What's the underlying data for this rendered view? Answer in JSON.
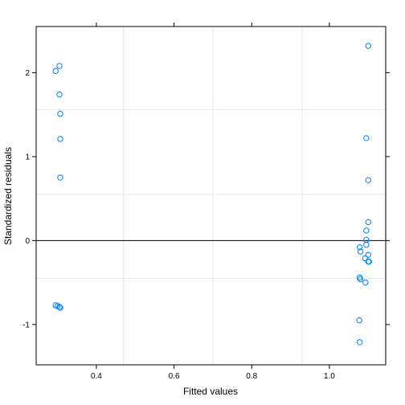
{
  "chart_data": {
    "type": "scatter",
    "title": "",
    "xlabel": "Fitted values",
    "ylabel": "Standardized residuals",
    "xlim": [
      0.245,
      1.145
    ],
    "ylim": [
      -1.48,
      2.55
    ],
    "xticks": [
      0.4,
      0.6,
      0.8,
      1.0
    ],
    "xtick_labels": [
      "0.4",
      "0.6",
      "0.8",
      "1.0"
    ],
    "yticks": [
      -1,
      0,
      1,
      2
    ],
    "yticklabels": [
      "-1",
      "0",
      "1",
      "2"
    ],
    "reference_line_y": 0,
    "grid": true,
    "point_color": "#0080ff",
    "series": [
      {
        "points": [
          [
            0.295,
            2.02
          ],
          [
            0.305,
            2.08
          ],
          [
            0.305,
            1.74
          ],
          [
            0.307,
            1.51
          ],
          [
            0.307,
            1.21
          ],
          [
            0.307,
            0.75
          ],
          [
            0.295,
            -0.77
          ],
          [
            0.3,
            -0.78
          ],
          [
            0.305,
            -0.79
          ],
          [
            0.307,
            -0.8
          ],
          [
            1.1,
            2.32
          ],
          [
            1.095,
            1.22
          ],
          [
            1.1,
            0.72
          ],
          [
            1.1,
            0.22
          ],
          [
            1.095,
            0.12
          ],
          [
            1.095,
            0.01
          ],
          [
            1.095,
            -0.05
          ],
          [
            1.078,
            -0.08
          ],
          [
            1.08,
            -0.13
          ],
          [
            1.1,
            -0.17
          ],
          [
            1.092,
            -0.21
          ],
          [
            1.1,
            -0.25
          ],
          [
            1.102,
            -0.25
          ],
          [
            1.078,
            -0.44
          ],
          [
            1.08,
            -0.46
          ],
          [
            1.093,
            -0.5
          ],
          [
            1.077,
            -0.95
          ],
          [
            1.078,
            -1.21
          ]
        ]
      }
    ]
  }
}
